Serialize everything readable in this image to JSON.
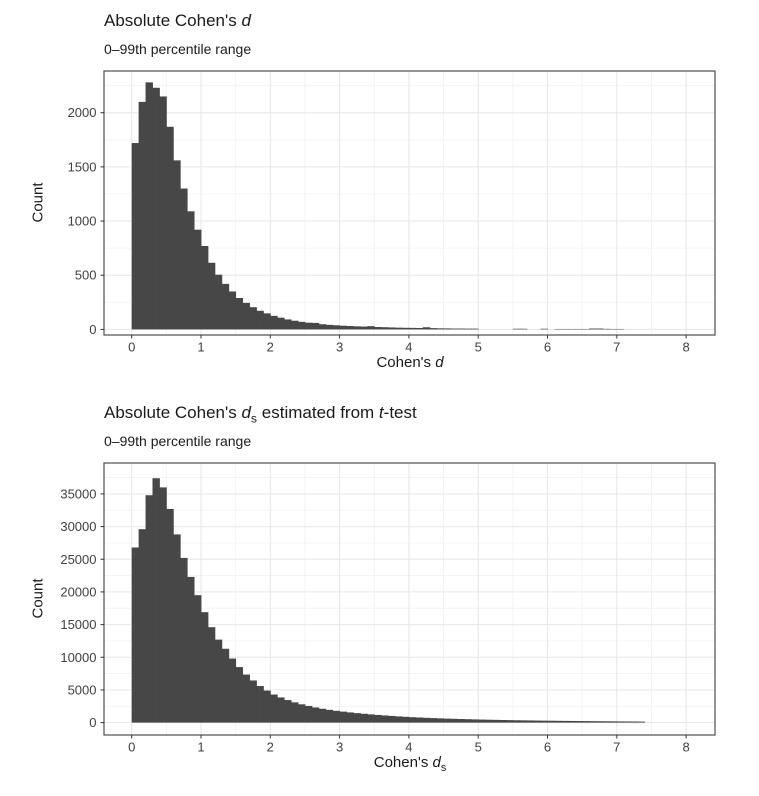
{
  "page": {
    "background_color": "#ffffff",
    "text_color": "#1a1a1a",
    "tick_label_color": "#404040",
    "panel_border_color": "#4d4d4d",
    "grid_major_color": "#e6e6e6",
    "grid_minor_color": "#f3f3f3"
  },
  "chart_data": [
    {
      "type": "histogram",
      "title": "Absolute Cohen's d",
      "title_segments": [
        {
          "text": "Absolute Cohen's ",
          "style": "normal"
        },
        {
          "text": "d",
          "style": "italic"
        }
      ],
      "subtitle": "0–99th percentile range",
      "xlabel": "Cohen's d",
      "xlabel_segments": [
        {
          "text": "Cohen's ",
          "style": "normal"
        },
        {
          "text": "d",
          "style": "italic"
        }
      ],
      "ylabel": "Count",
      "bar_color": "#474747",
      "grid": true,
      "legend": "none",
      "xlim": [
        -0.4,
        8.4
      ],
      "ylim": [
        0,
        2400
      ],
      "x_ticks": [
        0,
        1,
        2,
        3,
        4,
        5,
        6,
        7,
        8
      ],
      "x_minor_ticks": [
        0.5,
        1.5,
        2.5,
        3.5,
        4.5,
        5.5,
        6.5,
        7.5
      ],
      "y_ticks": [
        0,
        500,
        1000,
        1500,
        2000
      ],
      "y_minor_ticks": [
        250,
        750,
        1250,
        1750,
        2250
      ],
      "bin_start": 0,
      "bin_width": 0.1,
      "counts": [
        1720,
        2100,
        2280,
        2230,
        2150,
        1870,
        1560,
        1300,
        1090,
        920,
        770,
        615,
        505,
        420,
        350,
        290,
        245,
        205,
        172,
        148,
        125,
        108,
        92,
        80,
        70,
        62,
        60,
        48,
        42,
        38,
        34,
        31,
        28,
        26,
        30,
        22,
        20,
        18,
        16,
        15,
        14,
        13,
        20,
        12,
        10,
        9,
        8,
        8,
        7,
        7,
        0,
        0,
        0,
        0,
        0,
        6,
        6,
        0,
        0,
        6,
        0,
        4,
        4,
        4,
        4,
        4,
        8,
        8,
        5,
        4,
        4
      ]
    },
    {
      "type": "histogram",
      "title": "Absolute Cohen's ds estimated from t-test",
      "title_segments": [
        {
          "text": "Absolute Cohen's ",
          "style": "normal"
        },
        {
          "text": "d",
          "style": "italic"
        },
        {
          "text": "s",
          "style": "sub"
        },
        {
          "text": " estimated from ",
          "style": "normal"
        },
        {
          "text": "t",
          "style": "italic"
        },
        {
          "text": "-test",
          "style": "normal"
        }
      ],
      "subtitle": "0–99th percentile range",
      "xlabel": "Cohen's ds",
      "xlabel_segments": [
        {
          "text": "Cohen's ",
          "style": "normal"
        },
        {
          "text": "d",
          "style": "italic"
        },
        {
          "text": "s",
          "style": "sub"
        }
      ],
      "ylabel": "Count",
      "bar_color": "#474747",
      "grid": true,
      "legend": "none",
      "xlim": [
        -0.4,
        8.4
      ],
      "ylim": [
        0,
        39500
      ],
      "x_ticks": [
        0,
        1,
        2,
        3,
        4,
        5,
        6,
        7,
        8
      ],
      "x_minor_ticks": [
        0.5,
        1.5,
        2.5,
        3.5,
        4.5,
        5.5,
        6.5,
        7.5
      ],
      "y_ticks": [
        0,
        5000,
        10000,
        15000,
        20000,
        25000,
        30000,
        35000
      ],
      "y_minor_ticks": [
        2500,
        7500,
        12500,
        17500,
        22500,
        27500,
        32500,
        37500
      ],
      "bin_start": 0,
      "bin_width": 0.1,
      "counts": [
        26800,
        29600,
        34800,
        37400,
        36000,
        32700,
        28800,
        25200,
        22300,
        19500,
        16900,
        14600,
        12700,
        11300,
        9800,
        8500,
        7350,
        6450,
        5600,
        4900,
        4300,
        3850,
        3450,
        3100,
        2800,
        2550,
        2320,
        2120,
        1950,
        1800,
        1680,
        1560,
        1450,
        1350,
        1260,
        1170,
        1090,
        1020,
        950,
        890,
        830,
        780,
        730,
        690,
        650,
        610,
        580,
        550,
        520,
        490,
        465,
        440,
        420,
        400,
        380,
        360,
        345,
        330,
        315,
        300,
        288,
        275,
        262,
        250,
        240,
        230,
        220,
        210,
        200,
        190,
        180,
        170,
        160,
        150
      ]
    }
  ]
}
